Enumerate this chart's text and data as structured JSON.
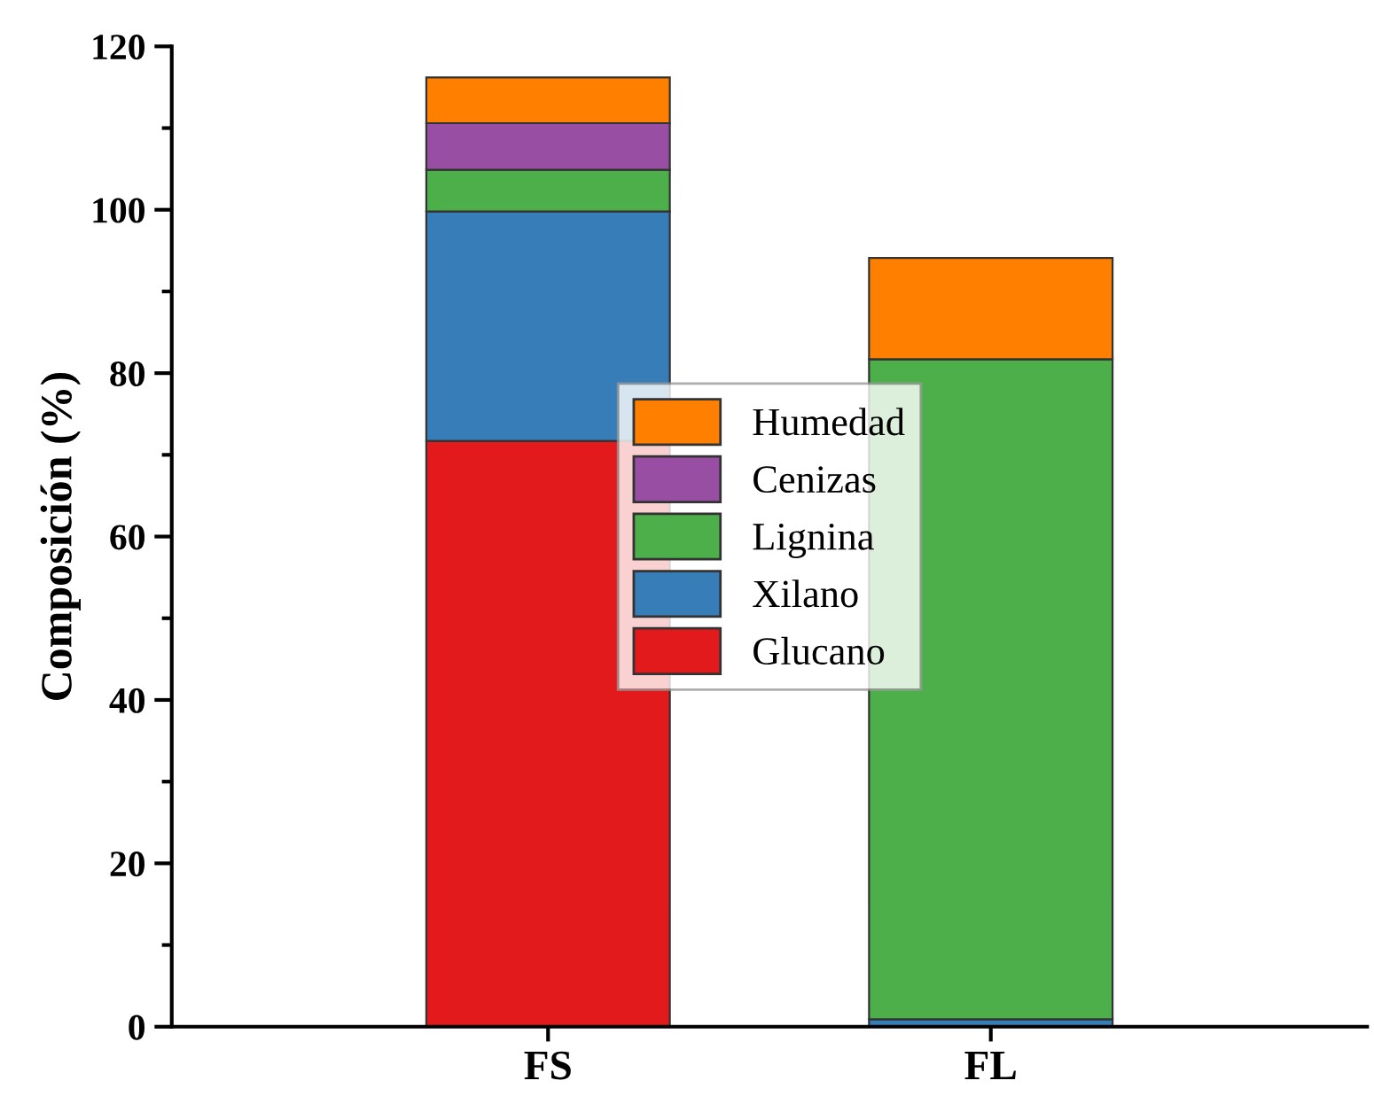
{
  "chart_data": {
    "type": "bar",
    "stacked": true,
    "ylabel": "Composición (%)",
    "categories": [
      "FS",
      "FL"
    ],
    "series": [
      {
        "name": "Glucano",
        "color": "#e31a1c",
        "values": [
          71.7,
          0
        ]
      },
      {
        "name": "Xilano",
        "color": "#377eb8",
        "values": [
          28.1,
          0.9
        ]
      },
      {
        "name": "Lignina",
        "color": "#4daf4a",
        "values": [
          5.1,
          80.8
        ]
      },
      {
        "name": "Cenizas",
        "color": "#984ea3",
        "values": [
          5.7,
          0
        ]
      },
      {
        "name": "Humedad",
        "color": "#ff7f00",
        "values": [
          5.6,
          12.4
        ]
      }
    ],
    "ylim": [
      0,
      120
    ],
    "yticks": [
      0,
      20,
      40,
      60,
      80,
      100,
      120
    ],
    "legend": "center",
    "grid": false
  }
}
